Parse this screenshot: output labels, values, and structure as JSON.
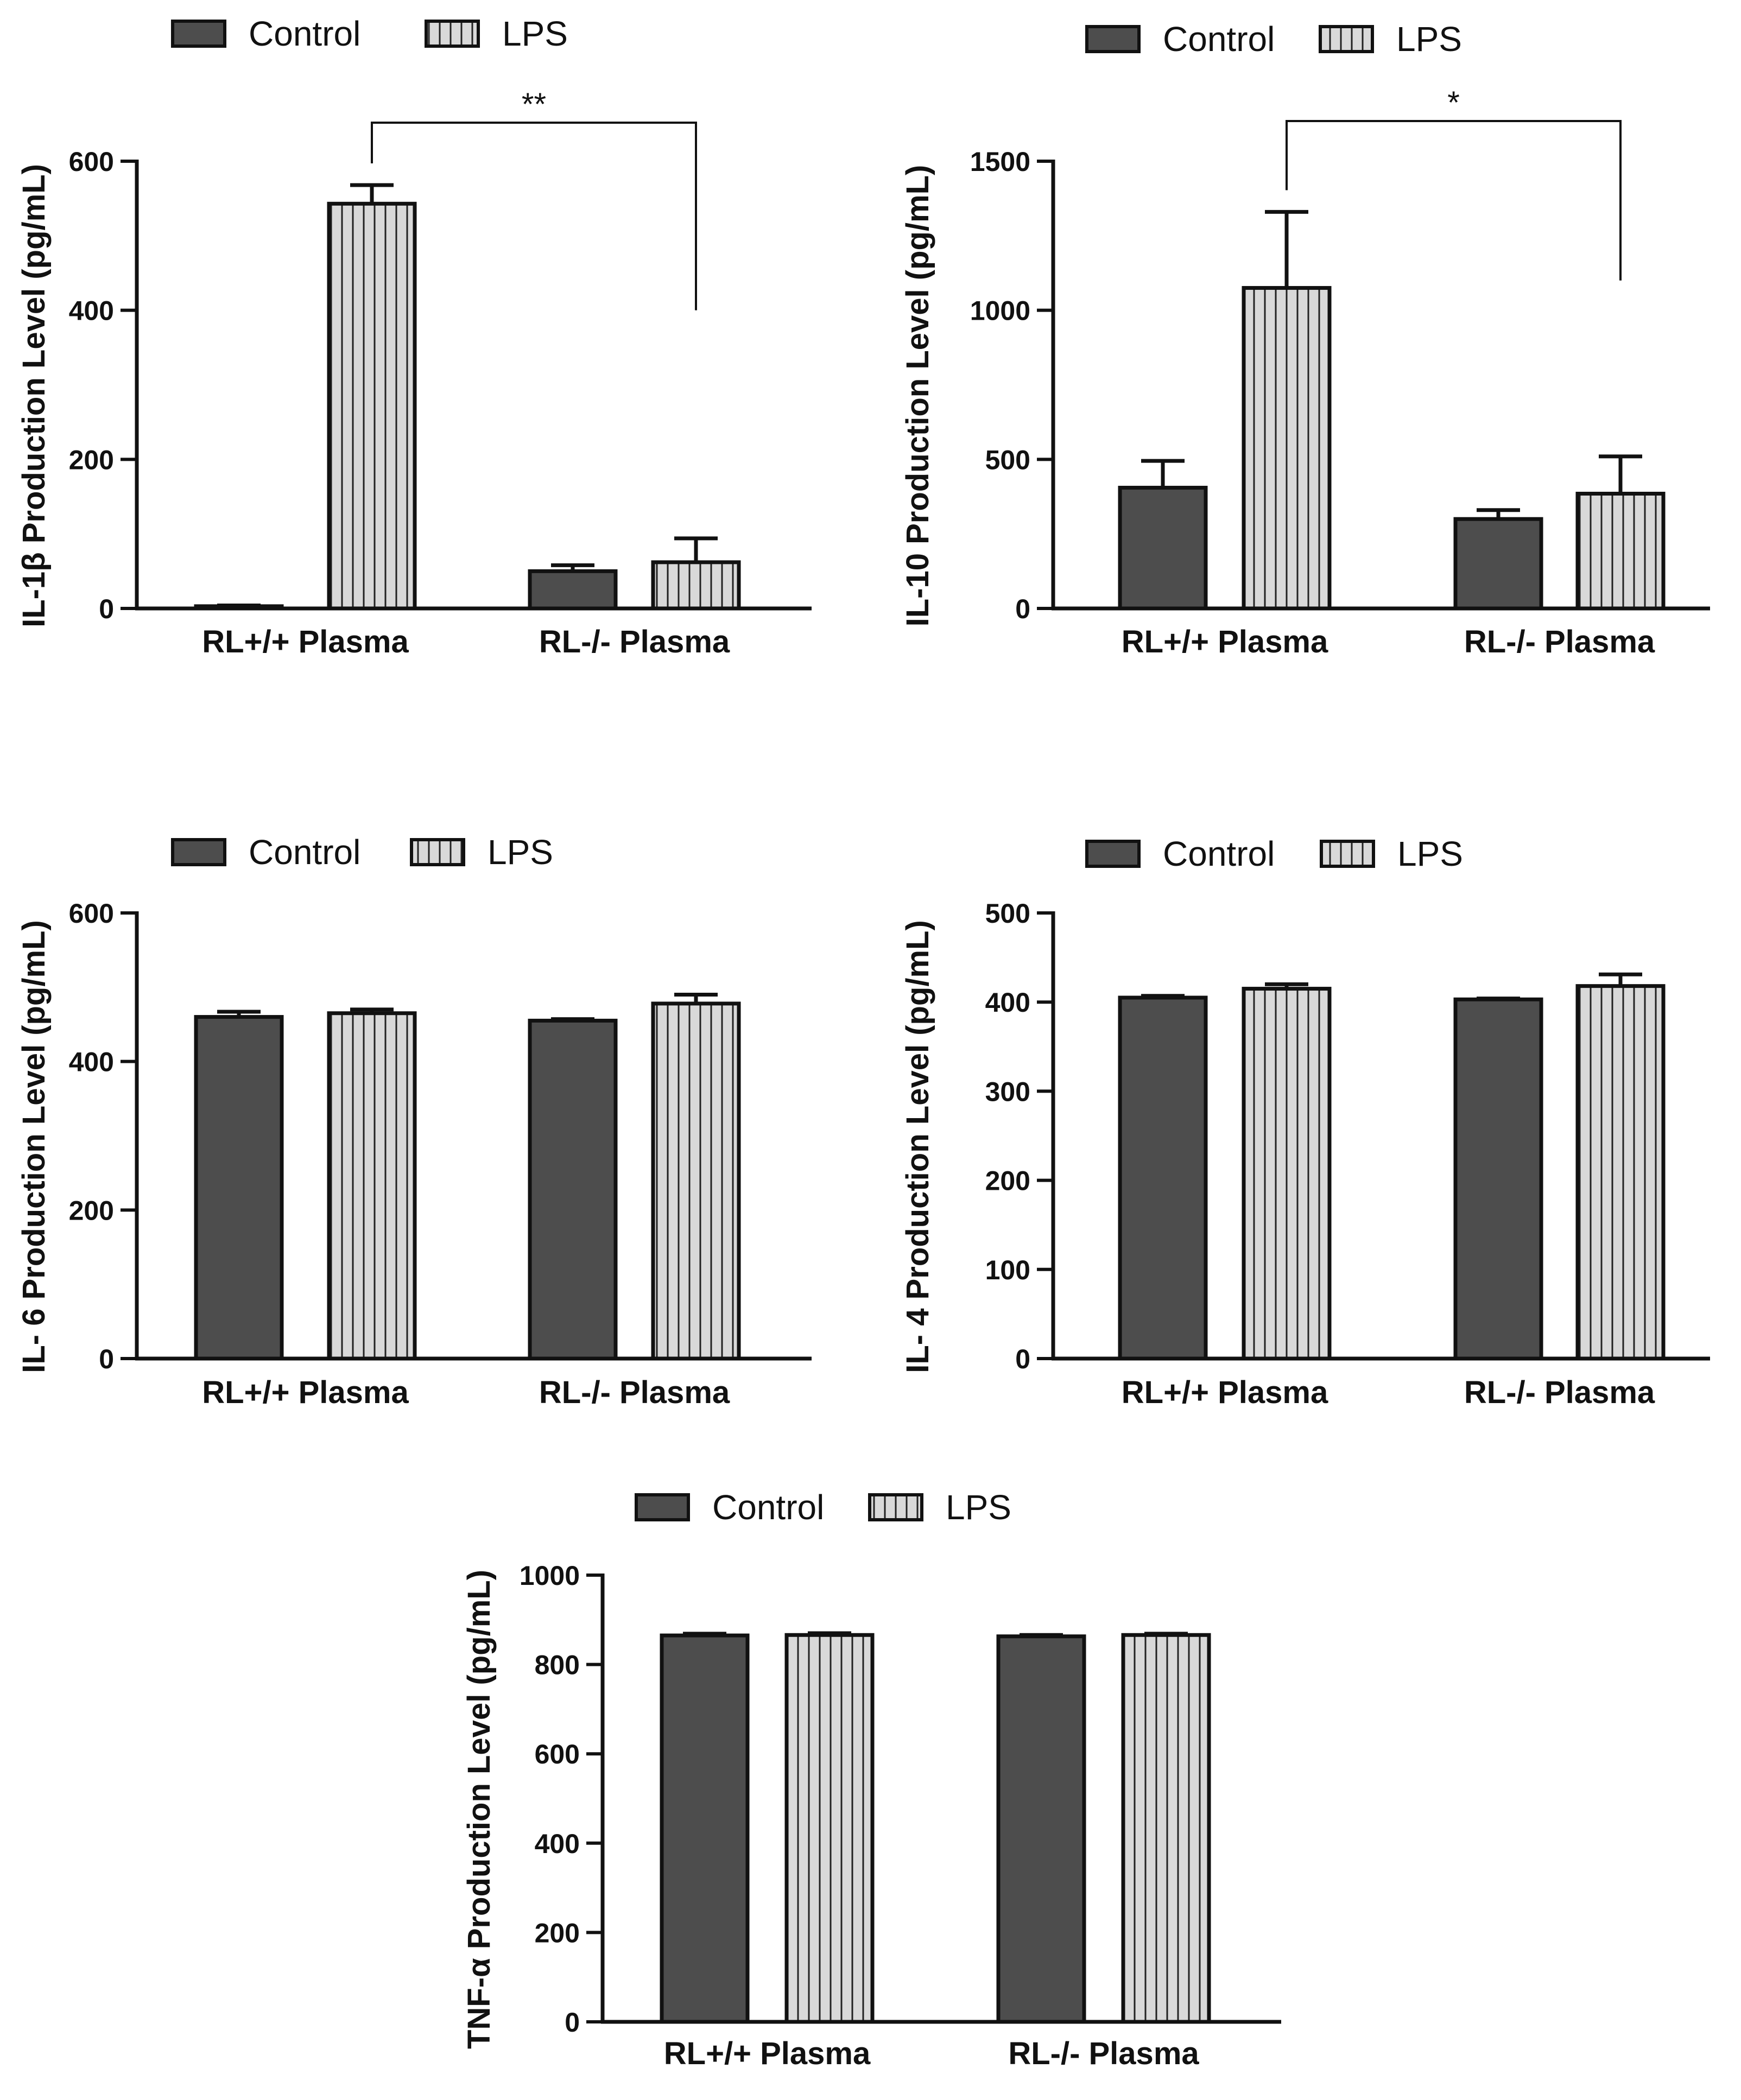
{
  "legend": {
    "control": "Control",
    "lps": "LPS"
  },
  "colors": {
    "control": "#4d4d4d",
    "lps": "#d9d9d9",
    "axis": "#111111"
  },
  "chart_data": [
    {
      "type": "bar",
      "ylabel": "IL-1β Production Level (pg/mL)",
      "categories": [
        "RL+/+ Plasma",
        "RL-/- Plasma"
      ],
      "ylim": [
        0,
        600
      ],
      "yticks": [
        "0",
        "200",
        "400",
        "600"
      ],
      "series": [
        {
          "name": "Control",
          "values": [
            3,
            50
          ],
          "errors": [
            1,
            8
          ]
        },
        {
          "name": "LPS",
          "values": [
            543,
            62
          ],
          "errors": [
            25,
            32
          ]
        }
      ],
      "significance": {
        "label": "**",
        "from": "RL+/+ Plasma LPS",
        "to": "RL-/- Plasma LPS"
      }
    },
    {
      "type": "bar",
      "ylabel": "IL-10 Production Level (pg/mL)",
      "categories": [
        "RL+/+ Plasma",
        "RL-/- Plasma"
      ],
      "ylim": [
        0,
        1500
      ],
      "yticks": [
        "0",
        "500",
        "1000",
        "1500"
      ],
      "series": [
        {
          "name": "Control",
          "values": [
            405,
            300
          ],
          "errors": [
            90,
            30
          ]
        },
        {
          "name": "LPS",
          "values": [
            1075,
            385
          ],
          "errors": [
            255,
            125
          ]
        }
      ],
      "significance": {
        "label": "*",
        "from": "RL+/+ Plasma LPS",
        "to": "RL-/- Plasma LPS"
      }
    },
    {
      "type": "bar",
      "ylabel": "IL- 6 Production Level (pg/mL)",
      "categories": [
        "RL+/+ Plasma",
        "RL-/- Plasma"
      ],
      "ylim": [
        0,
        600
      ],
      "yticks": [
        "0",
        "200",
        "400",
        "600"
      ],
      "series": [
        {
          "name": "Control",
          "values": [
            460,
            455
          ],
          "errors": [
            7,
            2
          ]
        },
        {
          "name": "LPS",
          "values": [
            465,
            478
          ],
          "errors": [
            5,
            12
          ]
        }
      ]
    },
    {
      "type": "bar",
      "ylabel": "IL- 4 Production Level (pg/mL)",
      "categories": [
        "RL+/+ Plasma",
        "RL-/- Plasma"
      ],
      "ylim": [
        0,
        500
      ],
      "yticks": [
        "0",
        "100",
        "200",
        "300",
        "400",
        "500"
      ],
      "series": [
        {
          "name": "Control",
          "values": [
            405,
            403
          ],
          "errors": [
            2,
            1
          ]
        },
        {
          "name": "LPS",
          "values": [
            415,
            418
          ],
          "errors": [
            5,
            13
          ]
        }
      ]
    },
    {
      "type": "bar",
      "ylabel": "TNF-α Production Level (pg/mL)",
      "categories": [
        "RL+/+ Plasma",
        "RL-/- Plasma"
      ],
      "ylim": [
        0,
        1000
      ],
      "yticks": [
        "0",
        "200",
        "400",
        "600",
        "800",
        "1000"
      ],
      "series": [
        {
          "name": "Control",
          "values": [
            865,
            863
          ],
          "errors": [
            4,
            3
          ]
        },
        {
          "name": "LPS",
          "values": [
            866,
            866
          ],
          "errors": [
            4,
            3
          ]
        }
      ]
    }
  ]
}
